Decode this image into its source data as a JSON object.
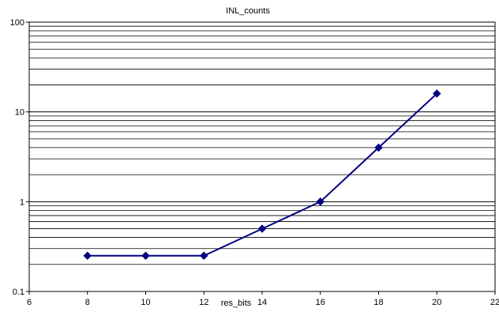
{
  "chart_data": {
    "type": "line",
    "title": "INL_counts",
    "xlabel": "res_bits",
    "ylabel": "",
    "xlim": [
      6,
      22
    ],
    "ylim": [
      0.1,
      100
    ],
    "y_scale": "log",
    "grid": "horizontal major and minor",
    "legend": "none",
    "x_ticks": [
      "6",
      "8",
      "10",
      "12",
      "14",
      "16",
      "18",
      "20",
      "22"
    ],
    "y_ticks": [
      "0.1",
      "1",
      "10",
      "100"
    ],
    "series": [
      {
        "x": [
          8,
          10,
          12,
          14,
          16,
          18,
          20
        ],
        "values": [
          0.25,
          0.25,
          0.25,
          0.5,
          1,
          4,
          16
        ],
        "color": "#000080",
        "marker": "diamond"
      }
    ]
  }
}
